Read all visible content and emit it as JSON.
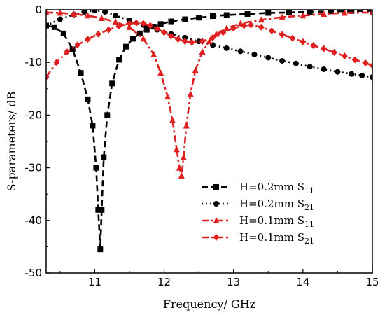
{
  "chart_data": {
    "type": "line",
    "title": "",
    "xlabel": "Frequency/ GHz",
    "ylabel": "S-parameters/ dB",
    "xlim": [
      10.3,
      15.0
    ],
    "ylim": [
      -50,
      0
    ],
    "xticks": [
      11,
      12,
      13,
      14,
      15
    ],
    "yticks": [
      0,
      -10,
      -20,
      -30,
      -40,
      -50
    ],
    "grid": false,
    "legend_position": "lower-right",
    "series": [
      {
        "name": "H=0.2mm S11",
        "legend_main": "H=0.2mm S",
        "legend_sub": "11",
        "color": "#000000",
        "dash": "dash",
        "marker": "square",
        "x": [
          10.3,
          10.42,
          10.55,
          10.68,
          10.8,
          10.9,
          10.97,
          11.02,
          11.05,
          11.08,
          11.1,
          11.13,
          11.18,
          11.25,
          11.35,
          11.45,
          11.55,
          11.65,
          11.75,
          11.85,
          11.95,
          12.1,
          12.3,
          12.5,
          12.7,
          12.9,
          13.2,
          13.5,
          13.8,
          14.1,
          14.4,
          14.7,
          15.0
        ],
        "y": [
          -3.0,
          -3.3,
          -4.5,
          -7.5,
          -12.0,
          -17.0,
          -22.0,
          -30.0,
          -38.0,
          -45.5,
          -38.0,
          -28.0,
          -20.0,
          -14.0,
          -9.5,
          -7.0,
          -5.5,
          -4.5,
          -3.8,
          -3.2,
          -2.7,
          -2.2,
          -1.8,
          -1.5,
          -1.2,
          -1.0,
          -0.8,
          -0.6,
          -0.5,
          -0.4,
          -0.3,
          -0.25,
          -0.2
        ]
      },
      {
        "name": "H=0.2mm S21",
        "legend_main": "H=0.2mm S",
        "legend_sub": "21",
        "color": "#000000",
        "dash": "dot",
        "marker": "circle",
        "x": [
          10.3,
          10.5,
          10.7,
          10.85,
          11.0,
          11.15,
          11.3,
          11.5,
          11.7,
          11.9,
          12.1,
          12.3,
          12.5,
          12.7,
          12.9,
          13.1,
          13.3,
          13.5,
          13.7,
          13.9,
          14.1,
          14.3,
          14.5,
          14.7,
          14.85,
          15.0
        ],
        "y": [
          -3.0,
          -1.8,
          -0.9,
          -0.4,
          -0.15,
          -0.4,
          -1.1,
          -2.0,
          -2.9,
          -3.8,
          -4.6,
          -5.3,
          -6.0,
          -6.7,
          -7.3,
          -7.9,
          -8.5,
          -9.1,
          -9.7,
          -10.2,
          -10.8,
          -11.3,
          -11.8,
          -12.2,
          -12.5,
          -12.8
        ]
      },
      {
        "name": "H=0.1mm S11",
        "legend_main": "H=0.1mm S",
        "legend_sub": "11",
        "color": "#e02020",
        "dash": "dashdot",
        "marker": "triangle",
        "x": [
          10.3,
          10.5,
          10.7,
          10.9,
          11.1,
          11.3,
          11.5,
          11.7,
          11.85,
          11.95,
          12.05,
          12.12,
          12.18,
          12.22,
          12.25,
          12.28,
          12.32,
          12.38,
          12.45,
          12.55,
          12.65,
          12.75,
          12.9,
          13.1,
          13.4,
          13.7,
          14.0,
          14.3,
          14.6,
          15.0
        ],
        "y": [
          -0.5,
          -0.6,
          -0.8,
          -1.1,
          -1.6,
          -2.3,
          -3.3,
          -5.5,
          -8.5,
          -12.0,
          -16.5,
          -21.0,
          -26.5,
          -30.0,
          -31.5,
          -28.0,
          -22.0,
          -16.0,
          -11.5,
          -8.0,
          -6.0,
          -4.6,
          -3.5,
          -2.6,
          -1.9,
          -1.4,
          -1.1,
          -0.8,
          -0.6,
          -0.5
        ]
      },
      {
        "name": "H=0.1mm S21",
        "legend_main": "H=0.1mm S",
        "legend_sub": "21",
        "color": "#e02020",
        "dash": "dashdot",
        "marker": "diamond",
        "x": [
          10.3,
          10.45,
          10.6,
          10.75,
          10.9,
          11.05,
          11.2,
          11.35,
          11.5,
          11.6,
          11.7,
          11.8,
          11.9,
          12.0,
          12.1,
          12.2,
          12.3,
          12.4,
          12.55,
          12.7,
          12.85,
          13.0,
          13.15,
          13.25,
          13.4,
          13.55,
          13.7,
          13.85,
          14.0,
          14.15,
          14.3,
          14.45,
          14.6,
          14.75,
          14.9,
          15.0
        ],
        "y": [
          -12.8,
          -10.0,
          -8.0,
          -6.7,
          -5.6,
          -4.6,
          -3.8,
          -3.1,
          -2.6,
          -2.5,
          -2.6,
          -3.0,
          -3.6,
          -4.3,
          -5.0,
          -5.6,
          -6.0,
          -6.2,
          -6.0,
          -5.3,
          -4.3,
          -3.5,
          -3.0,
          -2.9,
          -3.3,
          -4.0,
          -4.7,
          -5.4,
          -6.1,
          -6.8,
          -7.4,
          -8.1,
          -8.8,
          -9.5,
          -10.1,
          -10.6
        ]
      }
    ]
  }
}
